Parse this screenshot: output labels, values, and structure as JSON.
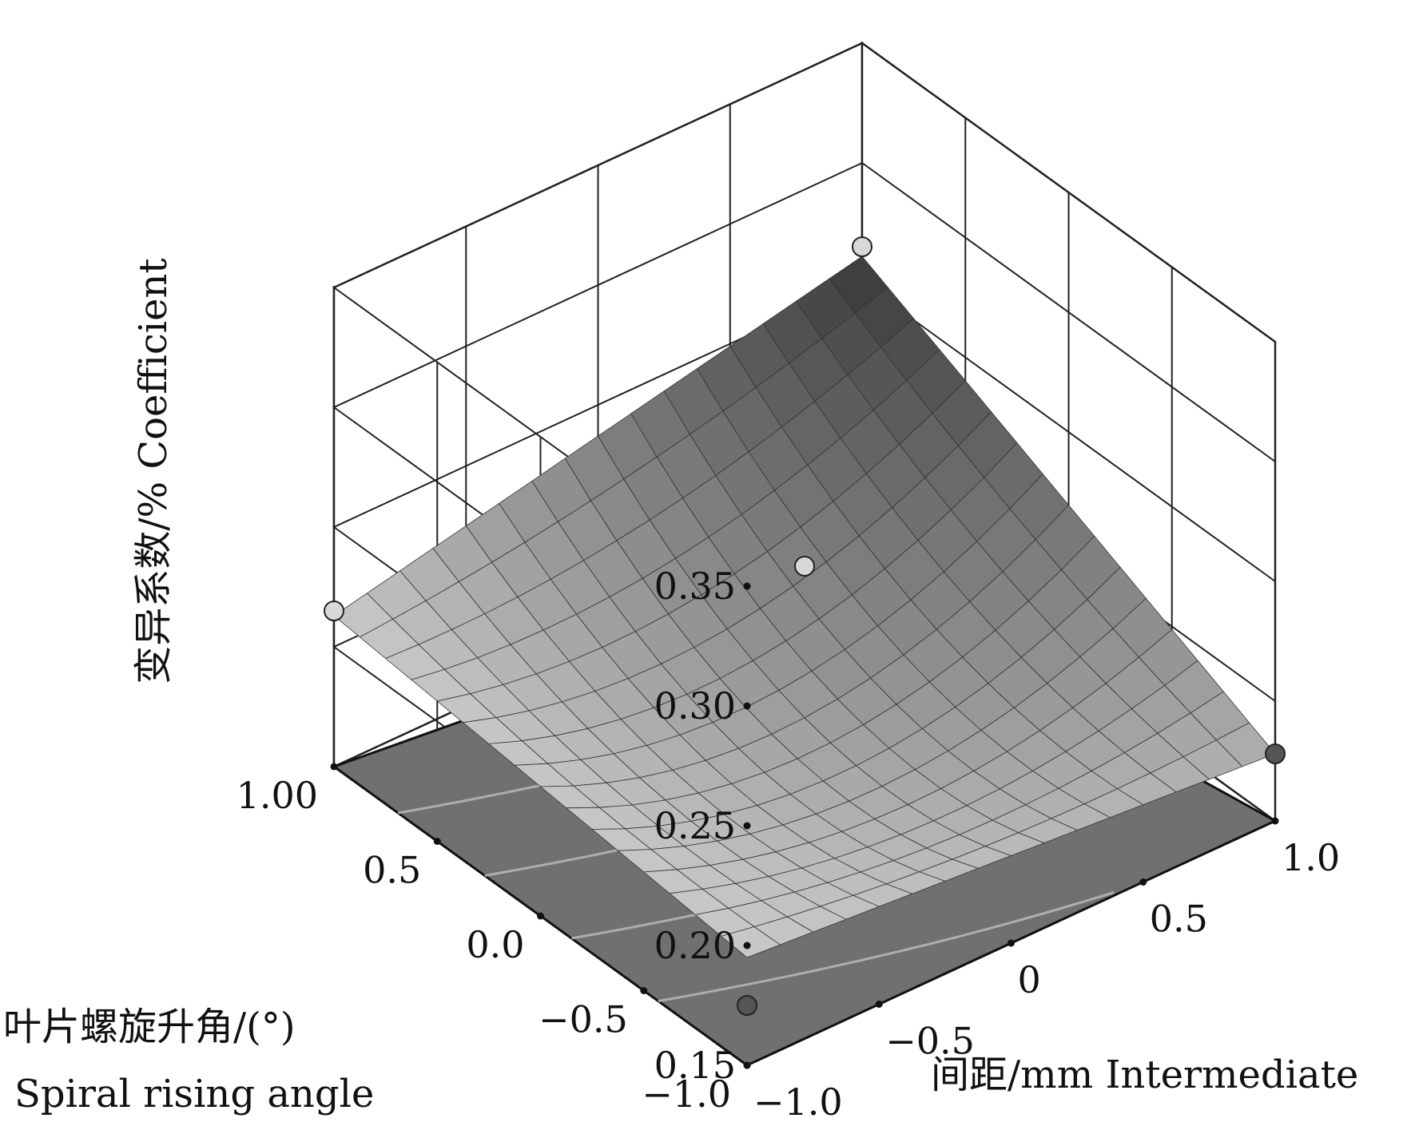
{
  "chart_data": {
    "type": "surface",
    "zlabel": "变异系数/% Coefficient",
    "xlabel": "间距/mm Intermediate",
    "ylabel_line1": "叶片螺旋升角/(°)",
    "ylabel_line2": "Spiral rising angle",
    "x_ticks": [
      "−1.0",
      "−0.5",
      "0",
      "0.5",
      "1.0"
    ],
    "y_ticks": [
      "−1.0",
      "−0.5",
      "0.0",
      "0.5",
      "1.00"
    ],
    "z_ticks": [
      "0.15",
      "0.20",
      "0.25",
      "0.30",
      "0.35"
    ],
    "x_range": [
      -1,
      1
    ],
    "y_range": [
      -1,
      1
    ],
    "z_range": [
      0.15,
      0.35
    ],
    "surface_corners": [
      {
        "x": -1,
        "y": 1,
        "z": 0.213
      },
      {
        "x": 1,
        "y": 1,
        "z": 0.261
      },
      {
        "x": 1,
        "y": -1,
        "z": 0.178
      },
      {
        "x": -1,
        "y": -1,
        "z": 0.195
      }
    ],
    "design_points": [
      {
        "x": -1,
        "y": 1,
        "z": 0.215,
        "position": "above"
      },
      {
        "x": 1,
        "y": 1,
        "z": 0.265,
        "position": "above"
      },
      {
        "x": 0,
        "y": 0,
        "z": 0.245,
        "position": "above"
      },
      {
        "x": 1,
        "y": -1,
        "z": 0.178,
        "position": "below"
      },
      {
        "x": -1,
        "y": -1,
        "z": 0.175,
        "position": "below"
      }
    ],
    "contour_levels": 4,
    "colors": {
      "surface_low": "#c8c8c8",
      "surface_high": "#3c3c3c",
      "floor": "#707070",
      "grid": "#222222"
    }
  }
}
